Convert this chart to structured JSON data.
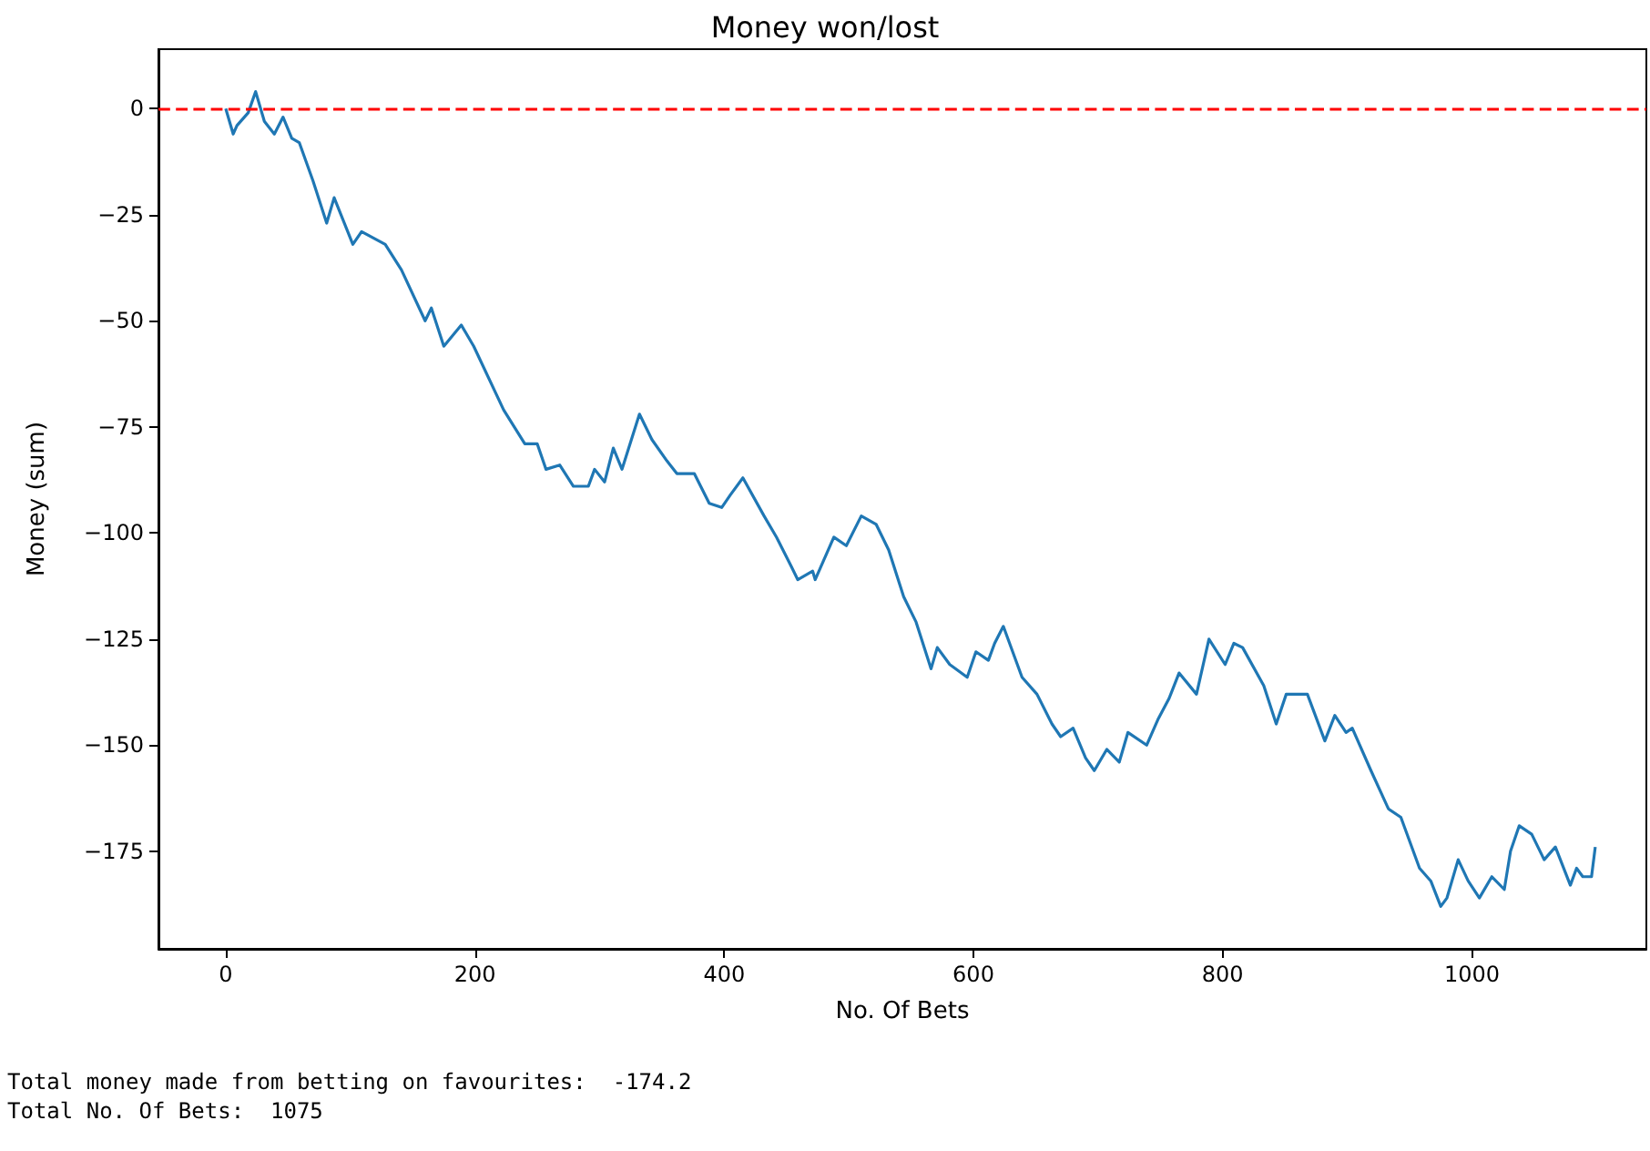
{
  "chart_data": {
    "type": "line",
    "title": "Money won/lost",
    "xlabel": "No. Of Bets",
    "ylabel": "Money (sum)",
    "xlim": [
      -54,
      1140
    ],
    "xticks": [
      0,
      200,
      400,
      600,
      800,
      1000
    ],
    "ylim": [
      -198,
      14
    ],
    "yticks": [
      -175,
      -150,
      -125,
      -100,
      -75,
      -50,
      -25,
      0
    ],
    "marker": "none",
    "line_style": "solid",
    "series": [
      {
        "color": "#1f77b4",
        "x": [
          0,
          6,
          9,
          18,
          24,
          31,
          39,
          46,
          53,
          59,
          70,
          81,
          87,
          102,
          109,
          128,
          141,
          160,
          165,
          175,
          189,
          199,
          223,
          240,
          250,
          257,
          268,
          279,
          291,
          296,
          304,
          311,
          318,
          332,
          342,
          354,
          362,
          376,
          388,
          398,
          405,
          415,
          432,
          442,
          454,
          459,
          471,
          473,
          488,
          498,
          510,
          522,
          532,
          544,
          554,
          566,
          571,
          581,
          595,
          602,
          612,
          617,
          624,
          639,
          651,
          663,
          670,
          680,
          690,
          697,
          707,
          717,
          724,
          739,
          748,
          757,
          765,
          779,
          789,
          802,
          809,
          816,
          833,
          843,
          851,
          868,
          882,
          890,
          899,
          904,
          919,
          933,
          943,
          958,
          967,
          975,
          980,
          989,
          997,
          1006,
          1016,
          1026,
          1031,
          1038,
          1048,
          1058,
          1067,
          1079,
          1084,
          1089,
          1096,
          1099
        ],
        "values": [
          0,
          -6,
          -4,
          -1,
          4,
          -3,
          -6,
          -2,
          -7,
          -8,
          -17,
          -27,
          -21,
          -32,
          -29,
          -32,
          -38,
          -50,
          -47,
          -56,
          -51,
          -56,
          -71,
          -79,
          -79,
          -85,
          -84,
          -89,
          -89,
          -85,
          -88,
          -80,
          -85,
          -72,
          -78,
          -83,
          -86,
          -86,
          -93,
          -94,
          -91,
          -87,
          -96,
          -101,
          -108,
          -111,
          -109,
          -111,
          -101,
          -103,
          -96,
          -98,
          -104,
          -115,
          -121,
          -132,
          -127,
          -131,
          -134,
          -128,
          -130,
          -126,
          -122,
          -134,
          -138,
          -145,
          -148,
          -146,
          -153,
          -156,
          -151,
          -154,
          -147,
          -150,
          -144,
          -139,
          -133,
          -138,
          -125,
          -131,
          -126,
          -127,
          -136,
          -145,
          -138,
          -138,
          -149,
          -143,
          -147,
          -146,
          -156,
          -165,
          -167,
          -179,
          -182,
          -188,
          -186,
          -177,
          -182,
          -186,
          -181,
          -184,
          -175,
          -169,
          -171,
          -177,
          -174,
          -183,
          -179,
          -181,
          -181,
          -174
        ]
      }
    ],
    "ref_lines": [
      {
        "axis": "y",
        "value": 0,
        "color": "#ff0000",
        "line_style": "dashed"
      }
    ],
    "annotations": [
      "Total money made from betting on favourites:  -174.2",
      "Total No. Of Bets:  1075"
    ]
  }
}
